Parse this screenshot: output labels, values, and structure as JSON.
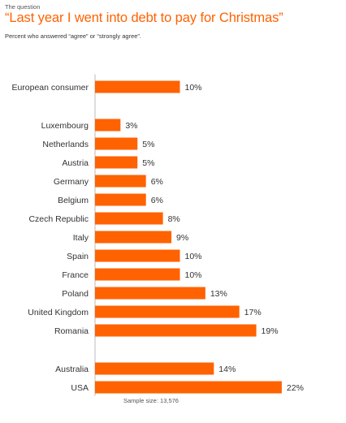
{
  "header": {
    "kicker": "The question",
    "title": "“Last year I went into debt to pay for Christmas”",
    "subtitle": "Percent who answered “agree” or “strongly agree”."
  },
  "footnote": "Sample size: 13,576",
  "colors": {
    "bar": "#ff6200",
    "axis": "#bbbbbb",
    "title": "#ff6200"
  },
  "chart_data": {
    "type": "bar",
    "orientation": "horizontal",
    "value_suffix": "%",
    "xlim": [
      0,
      22
    ],
    "grid": false,
    "legend": "none",
    "categories": [
      "European consumer",
      "Luxembourg",
      "Netherlands",
      "Austria",
      "Germany",
      "Belgium",
      "Czech Republic",
      "Italy",
      "Spain",
      "France",
      "Poland",
      "United Kingdom",
      "Romania",
      "Australia",
      "USA"
    ],
    "values": [
      10,
      3,
      5,
      5,
      6,
      6,
      8,
      9,
      10,
      10,
      13,
      17,
      19,
      14,
      22
    ],
    "groups": [
      [
        0
      ],
      [
        1,
        2,
        3,
        4,
        5,
        6,
        7,
        8,
        9,
        10,
        11,
        12
      ],
      [
        13,
        14
      ]
    ]
  }
}
